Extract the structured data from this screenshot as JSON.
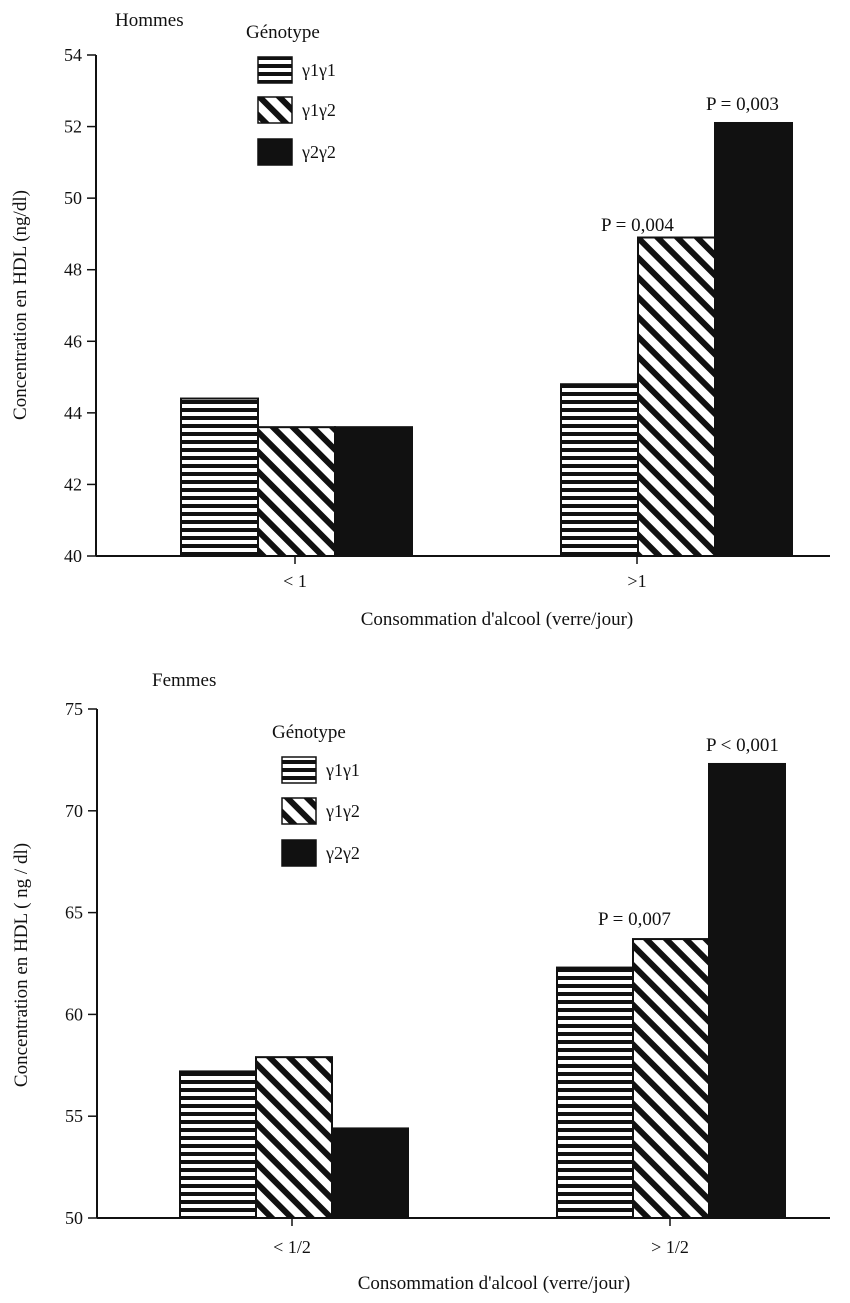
{
  "chart_data": [
    {
      "type": "bar",
      "title": "Hommes",
      "legend_title": "Génotype",
      "legend_placement": "top-left",
      "categories": [
        "< 1",
        ">1"
      ],
      "series": [
        {
          "name": "γ1γ1",
          "values": [
            44.4,
            44.8
          ]
        },
        {
          "name": "γ1γ2",
          "values": [
            43.6,
            48.9
          ]
        },
        {
          "name": "γ2γ2",
          "values": [
            43.6,
            52.1
          ]
        }
      ],
      "annotations": [
        {
          "text": "P = 0,004",
          "category": ">1",
          "series": "γ1γ2"
        },
        {
          "text": "P = 0,003",
          "category": ">1",
          "series": "γ2γ2"
        }
      ],
      "xlabel": "Consommation d'alcool (verre/jour)",
      "ylabel": "Concentration en HDL (ng/dl)",
      "ylim": [
        40,
        54
      ],
      "yticks": [
        "40",
        "42",
        "44",
        "46",
        "48",
        "50",
        "52",
        "54"
      ],
      "grid": false
    },
    {
      "type": "bar",
      "title": "Femmes",
      "legend_title": "Génotype",
      "legend_placement": "top-left",
      "categories": [
        "< 1/2",
        "> 1/2"
      ],
      "series": [
        {
          "name": "γ1γ1",
          "values": [
            57.2,
            62.3
          ]
        },
        {
          "name": "γ1γ2",
          "values": [
            57.9,
            63.7
          ]
        },
        {
          "name": "γ2γ2",
          "values": [
            54.4,
            72.3
          ]
        }
      ],
      "annotations": [
        {
          "text": "P = 0,007",
          "category": "> 1/2",
          "series": "γ1γ2"
        },
        {
          "text": "P < 0,001",
          "category": "> 1/2",
          "series": "γ2γ2"
        }
      ],
      "xlabel": "Consommation d'alcool (verre/jour)",
      "ylabel": "Concentration en HDL ( ng / dl)",
      "ylim": [
        50,
        75
      ],
      "yticks": [
        "50",
        "55",
        "60",
        "65",
        "70",
        "75"
      ],
      "grid": false
    }
  ],
  "colors": {
    "ink": "#111111",
    "background": "#ffffff"
  },
  "fill_styles": [
    "horizontal-stripes",
    "diagonal-stripes",
    "solid-black"
  ]
}
